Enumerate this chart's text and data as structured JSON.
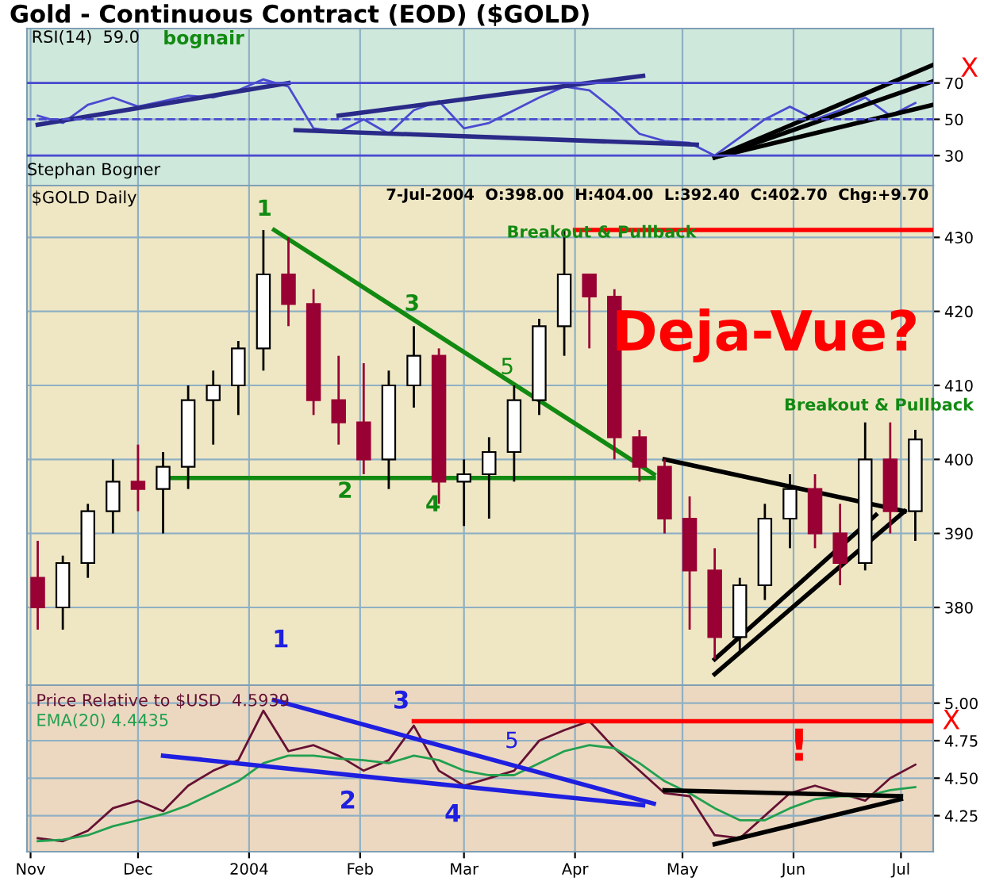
{
  "chart_data": [
    {
      "type": "line",
      "title": "Gold - Continuous Contract (EOD) ($GOLD)",
      "x": [
        "2003-11-03",
        "2003-11-10",
        "2003-11-17",
        "2003-11-24",
        "2003-12-01",
        "2003-12-08",
        "2003-12-15",
        "2003-12-22",
        "2003-12-29",
        "2004-01-05",
        "2004-01-12",
        "2004-01-19",
        "2004-01-26",
        "2004-02-02",
        "2004-02-09",
        "2004-02-16",
        "2004-02-23",
        "2004-03-01",
        "2004-03-08",
        "2004-03-15",
        "2004-03-22",
        "2004-03-29",
        "2004-04-05",
        "2004-04-12",
        "2004-04-19",
        "2004-04-26",
        "2004-05-03",
        "2004-05-10",
        "2004-05-17",
        "2004-05-24",
        "2004-05-31",
        "2004-06-07",
        "2004-06-14",
        "2004-06-21",
        "2004-06-28",
        "2004-07-05"
      ],
      "series": [
        {
          "color": "#4a4ad0",
          "values": [
            52,
            48,
            58,
            62,
            57,
            60,
            63,
            62,
            66,
            72,
            68,
            45,
            43,
            50,
            42,
            55,
            60,
            45,
            48,
            55,
            62,
            68,
            66,
            55,
            42,
            38,
            37,
            30,
            40,
            50,
            57,
            50,
            55,
            62,
            52,
            59
          ]
        },
        {
          "color": "#2a2a88",
          "x": [
            "2003-11-03",
            "2004-01-12"
          ],
          "values": [
            47,
            70
          ]
        },
        {
          "color": "#2a2a88",
          "x": [
            "2004-01-14",
            "2004-05-05"
          ],
          "values": [
            44,
            36
          ]
        },
        {
          "color": "#2a2a88",
          "x": [
            "2004-01-26",
            "2004-04-20"
          ],
          "values": [
            52,
            74
          ]
        },
        {
          "color": "#000000",
          "x": [
            "2004-05-10",
            "2004-07-10"
          ],
          "values": [
            29,
            80
          ]
        },
        {
          "color": "#000000",
          "x": [
            "2004-05-10",
            "2004-07-10"
          ],
          "values": [
            29,
            71
          ]
        },
        {
          "color": "#000000",
          "x": [
            "2004-05-10",
            "2004-07-10"
          ],
          "values": [
            29,
            58
          ]
        },
        {
          "color": "#4a4ad0",
          "x": [
            "2003-10-31",
            "2004-07-10"
          ],
          "values": [
            30,
            30
          ]
        },
        {
          "color": "#4a4ad0",
          "x": [
            "2003-10-31",
            "2004-07-10"
          ],
          "values": [
            50,
            50
          ],
          "line_style": "dashed"
        },
        {
          "color": "#4a4ad0",
          "x": [
            "2003-10-31",
            "2004-07-10"
          ],
          "values": [
            70,
            70
          ]
        }
      ],
      "annotations": [
        "RSI(14)  59.0",
        "bognair",
        "X"
      ],
      "xlim": [
        "2003-10-31",
        "2004-07-10"
      ],
      "ylim": [
        13.5,
        100
      ],
      "yticks": [
        30,
        50,
        70
      ],
      "xticks": [
        {
          "value": "2003-11-01",
          "label": null
        },
        {
          "value": "2003-12-01",
          "label": null
        },
        {
          "value": "2004-01-01",
          "label": null
        },
        {
          "value": "2004-02-01",
          "label": null
        },
        {
          "value": "2004-03-01",
          "label": null
        },
        {
          "value": "2004-04-01",
          "label": null
        },
        {
          "value": "2004-05-01",
          "label": null
        },
        {
          "value": "2004-06-01",
          "label": null
        },
        {
          "value": "2004-07-01",
          "label": null
        }
      ],
      "grid": true,
      "tick_labels": "y"
    },
    {
      "type": "candlestick",
      "x": [
        "2003-11-03",
        "2003-11-10",
        "2003-11-17",
        "2003-11-24",
        "2003-12-01",
        "2003-12-08",
        "2003-12-15",
        "2003-12-22",
        "2003-12-29",
        "2004-01-05",
        "2004-01-12",
        "2004-01-19",
        "2004-01-26",
        "2004-02-02",
        "2004-02-09",
        "2004-02-16",
        "2004-02-23",
        "2004-03-01",
        "2004-03-08",
        "2004-03-15",
        "2004-03-22",
        "2004-03-29",
        "2004-04-05",
        "2004-04-12",
        "2004-04-19",
        "2004-04-26",
        "2004-05-03",
        "2004-05-10",
        "2004-05-17",
        "2004-05-24",
        "2004-05-31",
        "2004-06-07",
        "2004-06-14",
        "2004-06-21",
        "2004-06-28",
        "2004-07-05"
      ],
      "ohlc": [
        [
          384,
          389,
          377,
          380
        ],
        [
          380,
          387,
          377,
          386
        ],
        [
          386,
          394,
          384,
          393
        ],
        [
          393,
          400,
          390,
          397
        ],
        [
          397,
          402,
          393,
          396
        ],
        [
          396,
          401,
          390,
          399
        ],
        [
          399,
          410,
          396,
          408
        ],
        [
          408,
          412,
          402,
          410
        ],
        [
          410,
          416,
          406,
          415
        ],
        [
          415,
          431,
          412,
          425
        ],
        [
          425,
          430,
          418,
          421
        ],
        [
          421,
          423,
          406,
          408
        ],
        [
          408,
          414,
          402,
          405
        ],
        [
          405,
          413,
          398,
          400
        ],
        [
          400,
          412,
          396,
          410
        ],
        [
          410,
          418,
          407,
          414
        ],
        [
          414,
          415,
          394,
          397
        ],
        [
          397,
          400,
          391,
          398
        ],
        [
          398,
          403,
          392,
          401
        ],
        [
          401,
          410,
          397,
          408
        ],
        [
          408,
          419,
          406,
          418
        ],
        [
          418,
          431,
          414,
          425
        ],
        [
          425,
          425,
          415,
          422
        ],
        [
          422,
          423,
          400,
          403
        ],
        [
          403,
          404,
          397,
          399
        ],
        [
          399,
          400,
          390,
          392
        ],
        [
          392,
          395,
          377,
          385
        ],
        [
          385,
          388,
          373,
          376
        ],
        [
          376,
          384,
          374,
          383
        ],
        [
          383,
          394,
          381,
          392
        ],
        [
          392,
          398,
          388,
          396
        ],
        [
          396,
          398,
          388,
          390
        ],
        [
          390,
          394,
          383,
          386
        ],
        [
          386,
          405,
          385,
          400
        ],
        [
          400,
          405,
          390,
          393
        ],
        [
          393,
          404,
          389,
          402.7
        ]
      ],
      "colors": [
        "#990033",
        "#000000",
        "#000000",
        "#000000",
        "#990033",
        "#000000",
        "#000000",
        "#000000",
        "#000000",
        "#000000",
        "#990033",
        "#990033",
        "#990033",
        "#990033",
        "#000000",
        "#000000",
        "#990033",
        "#000000",
        "#000000",
        "#000000",
        "#000000",
        "#000000",
        "#990033",
        "#990033",
        "#990033",
        "#990033",
        "#990033",
        "#990033",
        "#000000",
        "#000000",
        "#000000",
        "#990033",
        "#990033",
        "#000000",
        "#990033",
        "#000000"
      ],
      "series": [
        {
          "type": "line",
          "color": "#128a12",
          "x": [
            "2004-01-08",
            "2004-04-23"
          ],
          "values": [
            431,
            398
          ]
        },
        {
          "type": "line",
          "color": "#128a12",
          "x": [
            "2003-12-08",
            "2004-04-23"
          ],
          "values": [
            397.5,
            397.5
          ]
        },
        {
          "type": "line",
          "color": "#000000",
          "x": [
            "2004-04-26",
            "2004-07-02"
          ],
          "values": [
            400,
            393
          ]
        },
        {
          "type": "line",
          "color": "#000000",
          "x": [
            "2004-05-10",
            "2004-06-24"
          ],
          "values": [
            373,
            392.5
          ]
        },
        {
          "type": "line",
          "color": "#000000",
          "x": [
            "2004-05-10",
            "2004-07-02"
          ],
          "values": [
            371,
            393
          ]
        },
        {
          "type": "line",
          "color": "#ff0000",
          "x": [
            "2004-04-01",
            "2004-07-10"
          ],
          "values": [
            431,
            431
          ]
        }
      ],
      "annotations": [
        "Stephan Bogner",
        "$GOLD Daily",
        "7-Jul-2004  O:398.00  H:404.00  L:392.40  C:402.70  Chg:+9.70",
        "1",
        "2",
        "3",
        "4",
        "5",
        "Breakout & Pullback",
        "Deja-Vue?",
        "Breakout & Pullback",
        "1"
      ],
      "xlim": [
        "2003-10-31",
        "2004-07-10"
      ],
      "ylim": [
        369.5,
        437
      ],
      "yticks": [
        380,
        390,
        400,
        410,
        420,
        430
      ],
      "xticks": [
        {
          "value": "2003-11-01",
          "label": null
        },
        {
          "value": "2003-12-01",
          "label": null
        },
        {
          "value": "2004-01-01",
          "label": null
        },
        {
          "value": "2004-02-01",
          "label": null
        },
        {
          "value": "2004-03-01",
          "label": null
        },
        {
          "value": "2004-04-01",
          "label": null
        },
        {
          "value": "2004-05-01",
          "label": null
        },
        {
          "value": "2004-06-01",
          "label": null
        },
        {
          "value": "2004-07-01",
          "label": null
        }
      ],
      "grid": true,
      "tick_labels": "y"
    },
    {
      "type": "line",
      "x": [
        "2003-11-03",
        "2003-11-10",
        "2003-11-17",
        "2003-11-24",
        "2003-12-01",
        "2003-12-08",
        "2003-12-15",
        "2003-12-22",
        "2003-12-29",
        "2004-01-05",
        "2004-01-12",
        "2004-01-19",
        "2004-01-26",
        "2004-02-02",
        "2004-02-09",
        "2004-02-16",
        "2004-02-23",
        "2004-03-01",
        "2004-03-08",
        "2004-03-15",
        "2004-03-22",
        "2004-03-29",
        "2004-04-05",
        "2004-04-12",
        "2004-04-19",
        "2004-04-26",
        "2004-05-03",
        "2004-05-10",
        "2004-05-17",
        "2004-05-24",
        "2004-05-31",
        "2004-06-07",
        "2004-06-14",
        "2004-06-21",
        "2004-06-28",
        "2004-07-05"
      ],
      "series": [
        {
          "name": "Price Relative to $USD  4.5939",
          "color": "#661133",
          "values": [
            4.1,
            4.08,
            4.15,
            4.3,
            4.35,
            4.28,
            4.45,
            4.55,
            4.62,
            4.95,
            4.68,
            4.72,
            4.65,
            4.55,
            4.62,
            4.85,
            4.55,
            4.45,
            4.5,
            4.55,
            4.75,
            4.82,
            4.88,
            4.7,
            4.55,
            4.4,
            4.38,
            4.12,
            4.1,
            4.25,
            4.4,
            4.45,
            4.4,
            4.35,
            4.5,
            4.59
          ]
        },
        {
          "name": "EMA(20) 4.4435",
          "color": "#22a050",
          "values": [
            4.08,
            4.09,
            4.12,
            4.18,
            4.22,
            4.26,
            4.32,
            4.4,
            4.48,
            4.6,
            4.65,
            4.65,
            4.63,
            4.62,
            4.6,
            4.65,
            4.62,
            4.55,
            4.52,
            4.52,
            4.6,
            4.68,
            4.72,
            4.7,
            4.6,
            4.48,
            4.4,
            4.3,
            4.22,
            4.22,
            4.3,
            4.36,
            4.38,
            4.38,
            4.42,
            4.44
          ]
        },
        {
          "color": "#1f1fe0",
          "x": [
            "2004-01-08",
            "2004-04-23"
          ],
          "values": [
            5.02,
            4.33
          ]
        },
        {
          "color": "#1f1fe0",
          "x": [
            "2003-12-08",
            "2004-04-20"
          ],
          "values": [
            4.65,
            4.32
          ]
        },
        {
          "color": "#ff0000",
          "x": [
            "2004-02-16",
            "2004-07-10"
          ],
          "values": [
            4.88,
            4.88
          ]
        },
        {
          "color": "#000000",
          "x": [
            "2004-04-26",
            "2004-07-01"
          ],
          "values": [
            4.42,
            4.38
          ]
        },
        {
          "color": "#000000",
          "x": [
            "2004-05-10",
            "2004-07-01"
          ],
          "values": [
            4.06,
            4.36
          ]
        }
      ],
      "annotations": [
        "2",
        "3",
        "4",
        "5",
        "!",
        "X"
      ],
      "xlim": [
        "2003-10-31",
        "2004-07-10"
      ],
      "ylim": [
        4.01,
        5.12
      ],
      "yticks": [
        4.25,
        {
          "value": 4.5,
          "label": "4.50"
        },
        4.75,
        {
          "value": 5.0,
          "label": "5.00"
        }
      ],
      "xticks": [
        {
          "value": "2003-11-01",
          "label": "Nov"
        },
        {
          "value": "2003-12-01",
          "label": "Dec"
        },
        {
          "value": "2004-01-01",
          "label": "2004"
        },
        {
          "value": "2004-02-01",
          "label": "Feb"
        },
        {
          "value": "2004-03-01",
          "label": "Mar"
        },
        {
          "value": "2004-04-01",
          "label": "Apr"
        },
        {
          "value": "2004-05-01",
          "label": "May"
        },
        {
          "value": "2004-06-01",
          "label": "Jun"
        },
        {
          "value": "2004-07-01",
          "label": "Jul"
        }
      ],
      "grid": true,
      "legend": "top left"
    }
  ]
}
